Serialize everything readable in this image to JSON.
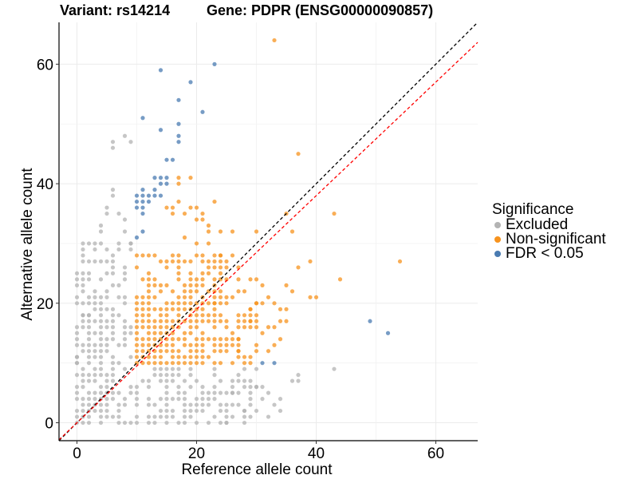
{
  "title": {
    "variant": "Variant: rs14214",
    "gene": "Gene: PDPR (ENSG00000090857)"
  },
  "legend": {
    "title": "Significance",
    "items": [
      {
        "label": "Excluded",
        "color": "#B3B3B3"
      },
      {
        "label": "Non-significant",
        "color": "#F7931E"
      },
      {
        "label": "FDR < 0.05",
        "color": "#4A7BB1"
      }
    ]
  },
  "chart_data": {
    "type": "scatter",
    "title": "Variant: rs14214    Gene: PDPR (ENSG00000090857)",
    "xlabel": "Reference allele count",
    "ylabel": "Alternative allele count",
    "xlim": [
      -3,
      67
    ],
    "ylim": [
      -3,
      67
    ],
    "xticks": [
      0,
      20,
      40,
      60
    ],
    "yticks": [
      0,
      20,
      40,
      60
    ],
    "grid": true,
    "legend_position": "right",
    "reference_lines": [
      {
        "name": "identity",
        "slope": 1.0,
        "intercept": 0,
        "color": "#000000",
        "style": "dashed"
      },
      {
        "name": "fit",
        "slope": 0.95,
        "intercept": 0,
        "color": "#FF0000",
        "style": "dashed"
      }
    ],
    "series": [
      {
        "name": "Excluded",
        "color": "#B3B3B3",
        "dense_regions": [
          {
            "x": [
              0,
              9
            ],
            "y": [
              0,
              30
            ],
            "fill": 0.8
          },
          {
            "x": [
              10,
              30
            ],
            "y": [
              0,
              9
            ],
            "fill": 0.7
          }
        ],
        "points": [
          [
            6,
            47
          ],
          [
            6,
            46
          ],
          [
            9,
            47
          ],
          [
            8,
            48
          ],
          [
            43,
            9
          ],
          [
            6,
            39
          ],
          [
            6,
            38
          ],
          [
            4,
            33
          ],
          [
            2,
            25
          ],
          [
            4,
            32
          ],
          [
            1,
            18
          ],
          [
            2,
            18
          ],
          [
            3,
            27
          ],
          [
            5,
            35
          ],
          [
            5,
            36
          ],
          [
            8,
            34
          ],
          [
            7,
            35
          ],
          [
            8,
            32
          ],
          [
            9,
            30
          ],
          [
            0,
            10
          ],
          [
            0,
            11
          ],
          [
            34,
            4
          ],
          [
            33,
            3
          ],
          [
            32,
            5
          ],
          [
            34,
            2
          ],
          [
            32,
            1
          ],
          [
            31,
            4
          ],
          [
            31,
            6
          ],
          [
            37,
            7
          ],
          [
            36,
            7
          ],
          [
            37,
            8
          ],
          [
            27,
            3
          ],
          [
            28,
            2
          ],
          [
            25,
            0
          ],
          [
            26,
            5
          ],
          [
            28,
            6
          ],
          [
            29,
            7
          ],
          [
            30,
            6
          ]
        ]
      },
      {
        "name": "Non-significant",
        "color": "#F7931E",
        "dense_regions": [
          {
            "x": [
              10,
              25
            ],
            "y": [
              10,
              28
            ],
            "fill": 0.85
          },
          {
            "x": [
              10,
              30
            ],
            "y": [
              10,
              20
            ],
            "fill": 0.7
          }
        ],
        "points": [
          [
            33,
            64
          ],
          [
            37,
            45
          ],
          [
            35,
            35
          ],
          [
            43,
            35
          ],
          [
            54,
            27
          ],
          [
            44,
            24
          ],
          [
            37,
            26
          ],
          [
            39,
            21
          ],
          [
            40,
            21
          ],
          [
            39,
            27
          ],
          [
            36,
            32
          ],
          [
            30,
            32
          ],
          [
            26,
            32
          ],
          [
            35,
            23
          ],
          [
            36,
            22
          ],
          [
            17,
            41
          ],
          [
            19,
            41
          ],
          [
            17,
            40
          ],
          [
            18,
            35
          ],
          [
            21,
            35
          ],
          [
            23,
            37
          ],
          [
            22,
            33
          ],
          [
            22,
            32
          ],
          [
            24,
            32
          ],
          [
            22,
            30
          ],
          [
            20,
            30
          ],
          [
            18,
            31
          ],
          [
            19,
            36
          ],
          [
            20,
            36
          ],
          [
            20,
            34
          ],
          [
            21,
            34
          ],
          [
            16,
            35
          ],
          [
            15,
            36
          ],
          [
            16,
            36
          ],
          [
            17,
            37
          ],
          [
            24,
            28
          ],
          [
            26,
            28
          ],
          [
            27,
            26
          ],
          [
            29,
            24
          ],
          [
            30,
            24
          ],
          [
            31,
            23
          ],
          [
            32,
            21
          ],
          [
            33,
            20
          ],
          [
            34,
            19
          ],
          [
            35,
            19
          ],
          [
            31,
            20
          ],
          [
            34,
            17
          ],
          [
            35,
            17
          ],
          [
            33,
            16
          ],
          [
            32,
            16
          ],
          [
            29,
            17
          ],
          [
            30,
            17
          ],
          [
            28,
            17
          ],
          [
            27,
            16
          ],
          [
            26,
            15
          ],
          [
            27,
            14
          ],
          [
            26,
            13
          ],
          [
            27,
            12
          ],
          [
            28,
            11
          ],
          [
            29,
            10
          ],
          [
            30,
            13
          ],
          [
            31,
            15
          ],
          [
            33,
            13
          ],
          [
            34,
            14
          ],
          [
            32,
            12
          ],
          [
            28,
            22
          ],
          [
            30,
            20
          ],
          [
            29,
            19
          ],
          [
            28,
            18
          ],
          [
            27,
            24
          ],
          [
            25,
            26
          ],
          [
            24,
            24
          ],
          [
            23,
            20
          ],
          [
            26,
            21
          ],
          [
            27,
            22
          ]
        ]
      },
      {
        "name": "FDR < 0.05",
        "color": "#4A7BB1",
        "points": [
          [
            23,
            60
          ],
          [
            14,
            59
          ],
          [
            19,
            57
          ],
          [
            17,
            54
          ],
          [
            21,
            52
          ],
          [
            11,
            51
          ],
          [
            14,
            49
          ],
          [
            17,
            50
          ],
          [
            17,
            48
          ],
          [
            17,
            47
          ],
          [
            15,
            44
          ],
          [
            16,
            44
          ],
          [
            13,
            41
          ],
          [
            14,
            41
          ],
          [
            15,
            41
          ],
          [
            14,
            40
          ],
          [
            15,
            40
          ],
          [
            11,
            39
          ],
          [
            13,
            39
          ],
          [
            10,
            38
          ],
          [
            11,
            38
          ],
          [
            12,
            38
          ],
          [
            13,
            38
          ],
          [
            14,
            38
          ],
          [
            10,
            37
          ],
          [
            11,
            37
          ],
          [
            12,
            37
          ],
          [
            10,
            36
          ],
          [
            11,
            36
          ],
          [
            11,
            35
          ],
          [
            11,
            32
          ],
          [
            10,
            31
          ],
          [
            49,
            17
          ],
          [
            52,
            15
          ],
          [
            31,
            10
          ],
          [
            33,
            10
          ]
        ]
      }
    ]
  }
}
